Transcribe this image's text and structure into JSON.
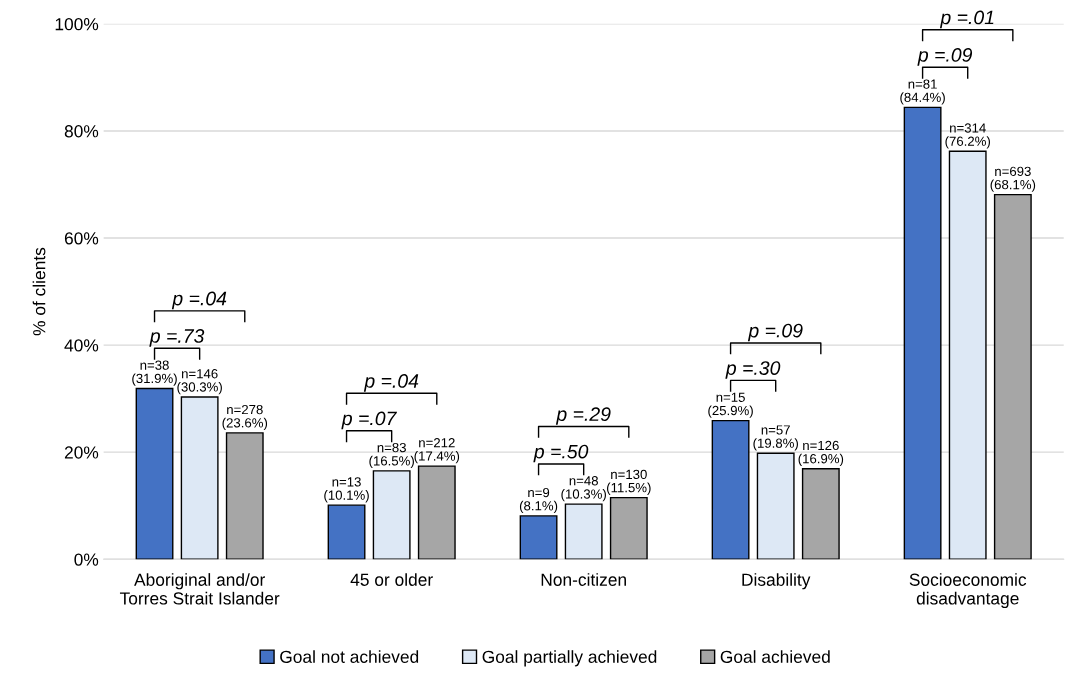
{
  "chart_data": {
    "type": "bar",
    "ylabel": "% of clients",
    "categories": [
      "Aboriginal and/or\nTorres Strait Islander",
      "45 or older",
      "Non-citizen",
      "Disability",
      "Socioeconomic\ndisadvantage"
    ],
    "series": [
      {
        "name": "Goal not achieved",
        "color": "#4472c4",
        "values": [
          31.9,
          10.1,
          8.1,
          25.9,
          84.4
        ],
        "value_labels": [
          "n=38\n(31.9%)",
          "n=13\n(10.1%)",
          "n=9\n(8.1%)",
          "n=15\n(25.9%)",
          "n=81\n(84.4%)"
        ]
      },
      {
        "name": "Goal partially achieved",
        "color": "#dde8f5",
        "values": [
          30.3,
          16.5,
          10.3,
          19.8,
          76.2
        ],
        "value_labels": [
          "n=146\n(30.3%)",
          "n=83\n(16.5%)",
          "n=48\n(10.3%)",
          "n=57\n(19.8%)",
          "n=314\n(76.2%)"
        ]
      },
      {
        "name": "Goal achieved",
        "color": "#a6a6a6",
        "values": [
          23.6,
          17.4,
          11.5,
          16.9,
          68.1
        ],
        "value_labels": [
          "n=278\n(23.6%)",
          "n=212\n(17.4%)",
          "n=130\n(11.5%)",
          "n=126\n(16.9%)",
          "n=693\n(68.1%)"
        ]
      }
    ],
    "ylim": [
      0,
      100
    ],
    "yticks": [
      {
        "value": 0,
        "label": "0%"
      },
      {
        "value": 20,
        "label": "20%"
      },
      {
        "value": 40,
        "label": "40%"
      },
      {
        "value": 60,
        "label": "60%"
      },
      {
        "value": 80,
        "label": "80%"
      },
      {
        "value": 100,
        "label": "100%"
      }
    ],
    "grid": "y",
    "legend": "bottom",
    "annotations": [
      "p =.73",
      "p =.04",
      "p =.07",
      "p =.04",
      "p =.50",
      "p =.29",
      "p =.30",
      "p =.09",
      "p =.09",
      "p =.01"
    ]
  }
}
